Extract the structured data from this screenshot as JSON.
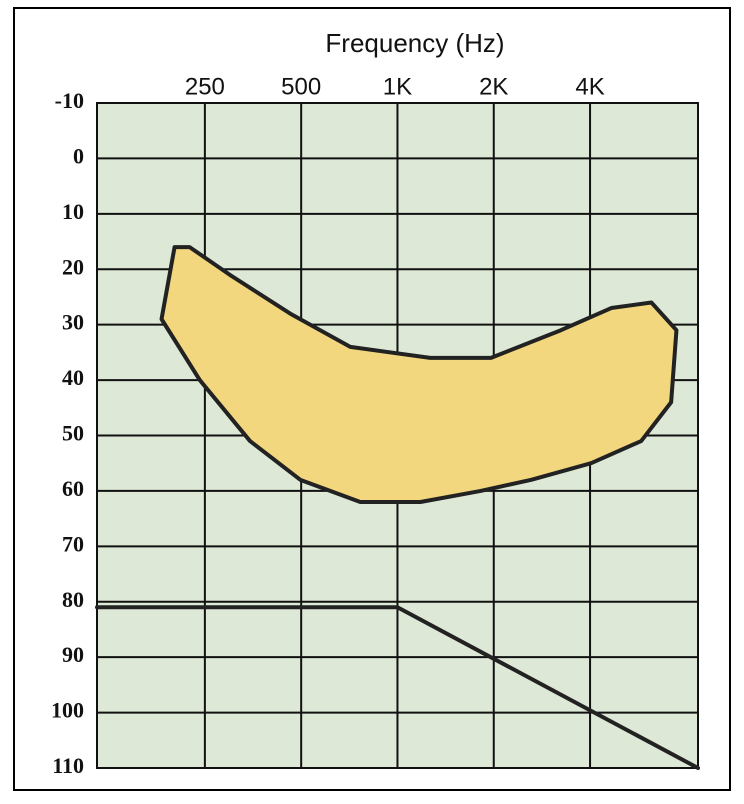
{
  "chart_data": {
    "type": "line",
    "title": "Frequency (Hz)",
    "xlog": true,
    "xlim": [
      115,
      8700
    ],
    "xticks": [
      250,
      500,
      {
        "value": 1000,
        "label": "1K"
      },
      {
        "value": 2000,
        "label": "2K"
      },
      {
        "value": 4000,
        "label": "4K"
      }
    ],
    "ylim": [
      -10,
      110
    ],
    "yticks": [
      -10,
      0,
      10,
      20,
      30,
      40,
      50,
      60,
      70,
      80,
      90,
      100,
      110
    ],
    "invert_y": true,
    "grid": true,
    "background": "#dde8d6",
    "series": [
      {
        "kind": "area",
        "color": "#222222",
        "fill": "#f3d77e",
        "x": [
          201,
          224,
          299,
          462,
          712,
          1266,
          1960,
          3242,
          4660,
          6220,
          7450,
          7170,
          5780,
          4030,
          2620,
          1820,
          1180,
          765,
          497,
          346,
          241,
          183
        ],
        "values": [
          16,
          16,
          21,
          28,
          34,
          36,
          36,
          31,
          27,
          26,
          31,
          44,
          51,
          55,
          58,
          60,
          62,
          62,
          58,
          51,
          40,
          29
        ]
      },
      {
        "kind": "line",
        "color": "#222222",
        "x": [
          115,
          1000,
          8700
        ],
        "values": [
          81,
          81,
          110
        ]
      }
    ]
  }
}
